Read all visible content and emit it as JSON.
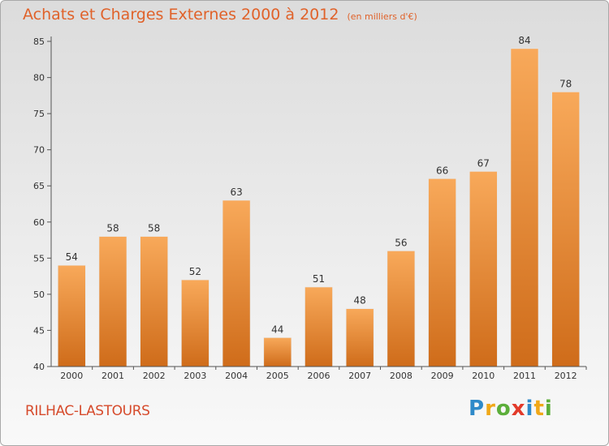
{
  "title": {
    "main": "Achats et Charges Externes 2000 à 2012",
    "unit": "(en milliers d'€)"
  },
  "commune": "RILHAC-LASTOURS",
  "logo": {
    "text": "Proxiti",
    "letters": [
      {
        "ch": "P",
        "color": "#2f8ac9"
      },
      {
        "ch": "r",
        "color": "#f0a818"
      },
      {
        "ch": "o",
        "color": "#5cae3a"
      },
      {
        "ch": "x",
        "color": "#e23a2a"
      },
      {
        "ch": "i",
        "color": "#2f8ac9"
      },
      {
        "ch": "t",
        "color": "#f0a818"
      },
      {
        "ch": "i",
        "color": "#5cae3a"
      }
    ]
  },
  "chart_data": {
    "type": "bar",
    "title": "Achats et Charges Externes 2000 à 2012",
    "subtitle": "(en milliers d'€)",
    "categories": [
      "2000",
      "2001",
      "2002",
      "2003",
      "2004",
      "2005",
      "2006",
      "2007",
      "2008",
      "2009",
      "2010",
      "2011",
      "2012"
    ],
    "values": [
      54,
      58,
      58,
      52,
      63,
      44,
      51,
      48,
      56,
      66,
      67,
      84,
      78
    ],
    "ylim": [
      40,
      85
    ],
    "yticks": [
      40,
      45,
      50,
      55,
      60,
      65,
      70,
      75,
      80,
      85
    ],
    "grid": false,
    "colors": {
      "bar_light": "#f8a95a",
      "bar_dark": "#cf6c1a",
      "axis": "#555555",
      "text": "#333333"
    }
  }
}
